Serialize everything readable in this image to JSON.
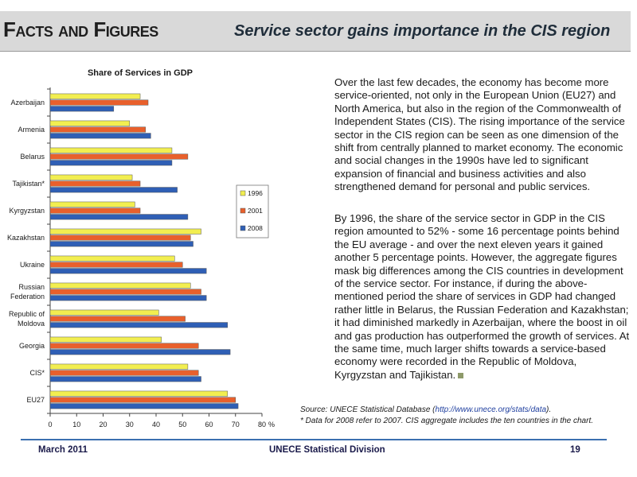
{
  "header": {
    "title": "Facts and Figures",
    "subtitle": "Service sector gains importance in the CIS region"
  },
  "colors": {
    "1996": "#f2ee50",
    "2001": "#e8602c",
    "2008": "#2f5fb5",
    "header_bg": "#d9d9d9"
  },
  "chart_data": {
    "type": "bar",
    "orientation": "horizontal",
    "title": "Share of Services in GDP",
    "categories": [
      "Azerbaijan",
      "Armenia",
      "Belarus",
      "Tajikistan*",
      "Kyrgyzstan",
      "Kazakhstan",
      "Ukraine",
      "Russian Federation",
      "Republic of Moldova",
      "Georgia",
      "CIS*",
      "EU27"
    ],
    "series": [
      {
        "name": "1996",
        "values": [
          34,
          30,
          46,
          31,
          32,
          57,
          47,
          53,
          41,
          42,
          52,
          67
        ]
      },
      {
        "name": "2001",
        "values": [
          37,
          36,
          52,
          34,
          34,
          53,
          50,
          57,
          51,
          56,
          56,
          70
        ]
      },
      {
        "name": "2008",
        "values": [
          24,
          38,
          46,
          48,
          52,
          54,
          59,
          59,
          67,
          68,
          57,
          71
        ]
      }
    ],
    "xlim": [
      0,
      80
    ],
    "xticks": [
      "0",
      "10",
      "20",
      "30",
      "40",
      "50",
      "60",
      "70",
      "80"
    ],
    "xunit": "%",
    "grid": false,
    "legend_position": "right"
  },
  "text": {
    "p1": "Over the last few decades, the economy has become more service-oriented, not only in the European Union (EU27) and North America, but also in the region of the Commonwealth of Independent States (CIS). The rising importance of the service sector in the CIS region can be seen as one dimension of the shift from centrally planned to market economy. The economic and social changes in the 1990s have led to significant expansion of financial and business activities and also strengthened demand for personal and public services.",
    "p2": "By 1996, the share of the service sector in GDP in the CIS region amounted to 52% - some 16 percentage points behind the EU average - and over the next eleven years it gained another 5 percentage points. However, the aggregate figures mask big differences among the CIS countries in development of the service sector. For instance, if during the above-mentioned period the share of services in GDP had changed rather little in Belarus, the Russian Federation and Kazakhstan; it had diminished markedly in Azerbaijan, where the boost in oil and gas production has outperformed the growth of services. At the same time, much larger shifts towards a service-based economy were recorded in the Republic of Moldova, Kyrgyzstan and Tajikistan."
  },
  "source": {
    "prefix": "Source: UNECE Statistical Database (",
    "link": "http://www.unece.org/stats/data",
    "suffix": ").",
    "note": "* Data for 2008 refer to 2007.  CIS aggregate includes the ten countries in the chart."
  },
  "footer": {
    "date": "March 2011",
    "org": "UNECE Statistical Division",
    "page": "19"
  }
}
